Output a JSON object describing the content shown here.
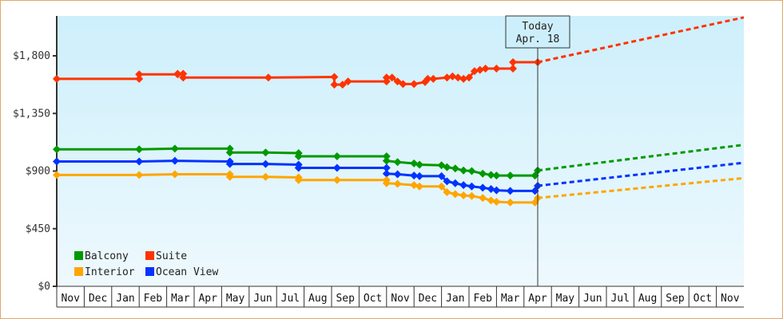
{
  "chart_data": {
    "type": "line",
    "title": "",
    "xlabel": "",
    "ylabel": "",
    "ylim": [
      0,
      2150
    ],
    "yticks": [
      {
        "value": 0,
        "label": "$0"
      },
      {
        "value": 450,
        "label": "$450"
      },
      {
        "value": 900,
        "label": "$900"
      },
      {
        "value": 1350,
        "label": "$1,350"
      },
      {
        "value": 1800,
        "label": "$1,800"
      }
    ],
    "x_months": [
      "Nov",
      "Dec",
      "Jan",
      "Feb",
      "Mar",
      "Apr",
      "May",
      "Jun",
      "Jul",
      "Aug",
      "Sep",
      "Oct",
      "Nov",
      "Dec",
      "Jan",
      "Feb",
      "Mar",
      "Apr",
      "May",
      "Jun",
      "Jul",
      "Aug",
      "Sep",
      "Oct",
      "Nov"
    ],
    "today_marker": {
      "line1": "Today",
      "line2": "Apr. 18",
      "month_index": 17.5
    },
    "legend": [
      {
        "name": "Balcony",
        "color": "#009900"
      },
      {
        "name": "Suite",
        "color": "#ff3300"
      },
      {
        "name": "Interior",
        "color": "#ffa500"
      },
      {
        "name": "Ocean View",
        "color": "#0033ff"
      }
    ],
    "series": [
      {
        "name": "Suite",
        "color": "#ff3300",
        "points": [
          [
            0,
            1620
          ],
          [
            3.0,
            1620
          ],
          [
            3.0,
            1655
          ],
          [
            4.4,
            1655
          ],
          [
            4.4,
            1660
          ],
          [
            4.6,
            1660
          ],
          [
            4.6,
            1630
          ],
          [
            7.7,
            1630
          ],
          [
            10.1,
            1635
          ],
          [
            10.1,
            1575
          ],
          [
            10.4,
            1575
          ],
          [
            10.6,
            1600
          ],
          [
            12.0,
            1600
          ],
          [
            12.0,
            1630
          ],
          [
            12.2,
            1630
          ],
          [
            12.4,
            1600
          ],
          [
            12.6,
            1580
          ],
          [
            13.0,
            1580
          ],
          [
            13.4,
            1595
          ],
          [
            13.5,
            1620
          ],
          [
            13.7,
            1620
          ],
          [
            14.2,
            1630
          ],
          [
            14.4,
            1640
          ],
          [
            14.6,
            1630
          ],
          [
            14.8,
            1620
          ],
          [
            15.0,
            1630
          ],
          [
            15.2,
            1680
          ],
          [
            15.4,
            1690
          ],
          [
            15.6,
            1700
          ],
          [
            16.0,
            1700
          ],
          [
            16.6,
            1700
          ],
          [
            16.6,
            1750
          ],
          [
            17.5,
            1750
          ]
        ],
        "projection": [
          [
            17.5,
            1750
          ],
          [
            25,
            2100
          ]
        ]
      },
      {
        "name": "Balcony",
        "color": "#009900",
        "points": [
          [
            0,
            1070
          ],
          [
            3.0,
            1070
          ],
          [
            4.3,
            1075
          ],
          [
            6.3,
            1075
          ],
          [
            6.3,
            1045
          ],
          [
            7.6,
            1045
          ],
          [
            8.8,
            1040
          ],
          [
            8.8,
            1015
          ],
          [
            10.2,
            1015
          ],
          [
            12.0,
            1015
          ],
          [
            12.0,
            980
          ],
          [
            12.4,
            970
          ],
          [
            13.0,
            960
          ],
          [
            13.2,
            950
          ],
          [
            14.0,
            945
          ],
          [
            14.2,
            930
          ],
          [
            14.5,
            920
          ],
          [
            14.8,
            905
          ],
          [
            15.1,
            900
          ],
          [
            15.5,
            880
          ],
          [
            15.8,
            870
          ],
          [
            16.0,
            865
          ],
          [
            16.5,
            865
          ],
          [
            17.4,
            865
          ],
          [
            17.5,
            905
          ]
        ],
        "projection": [
          [
            17.5,
            905
          ],
          [
            25,
            1105
          ]
        ]
      },
      {
        "name": "Ocean View",
        "color": "#0033ff",
        "points": [
          [
            0,
            975
          ],
          [
            3.0,
            975
          ],
          [
            4.3,
            980
          ],
          [
            6.3,
            975
          ],
          [
            6.3,
            955
          ],
          [
            7.6,
            955
          ],
          [
            8.8,
            950
          ],
          [
            8.8,
            925
          ],
          [
            10.2,
            925
          ],
          [
            12.0,
            925
          ],
          [
            12.0,
            880
          ],
          [
            12.4,
            875
          ],
          [
            13.0,
            865
          ],
          [
            13.2,
            860
          ],
          [
            14.0,
            860
          ],
          [
            14.2,
            820
          ],
          [
            14.5,
            805
          ],
          [
            14.8,
            790
          ],
          [
            15.1,
            780
          ],
          [
            15.5,
            770
          ],
          [
            15.8,
            760
          ],
          [
            16.0,
            750
          ],
          [
            16.5,
            745
          ],
          [
            17.4,
            745
          ],
          [
            17.5,
            785
          ]
        ],
        "projection": [
          [
            17.5,
            785
          ],
          [
            25,
            965
          ]
        ]
      },
      {
        "name": "Interior",
        "color": "#ffa500",
        "points": [
          [
            0,
            870
          ],
          [
            3.0,
            870
          ],
          [
            4.3,
            875
          ],
          [
            6.3,
            875
          ],
          [
            6.3,
            855
          ],
          [
            7.6,
            855
          ],
          [
            8.8,
            850
          ],
          [
            8.8,
            830
          ],
          [
            10.2,
            830
          ],
          [
            12.0,
            830
          ],
          [
            12.0,
            805
          ],
          [
            12.4,
            800
          ],
          [
            13.0,
            790
          ],
          [
            13.2,
            780
          ],
          [
            14.0,
            780
          ],
          [
            14.2,
            735
          ],
          [
            14.5,
            720
          ],
          [
            14.8,
            710
          ],
          [
            15.1,
            705
          ],
          [
            15.5,
            690
          ],
          [
            15.8,
            670
          ],
          [
            16.0,
            660
          ],
          [
            16.5,
            655
          ],
          [
            17.4,
            655
          ],
          [
            17.5,
            690
          ]
        ],
        "projection": [
          [
            17.5,
            690
          ],
          [
            25,
            845
          ]
        ]
      }
    ]
  }
}
